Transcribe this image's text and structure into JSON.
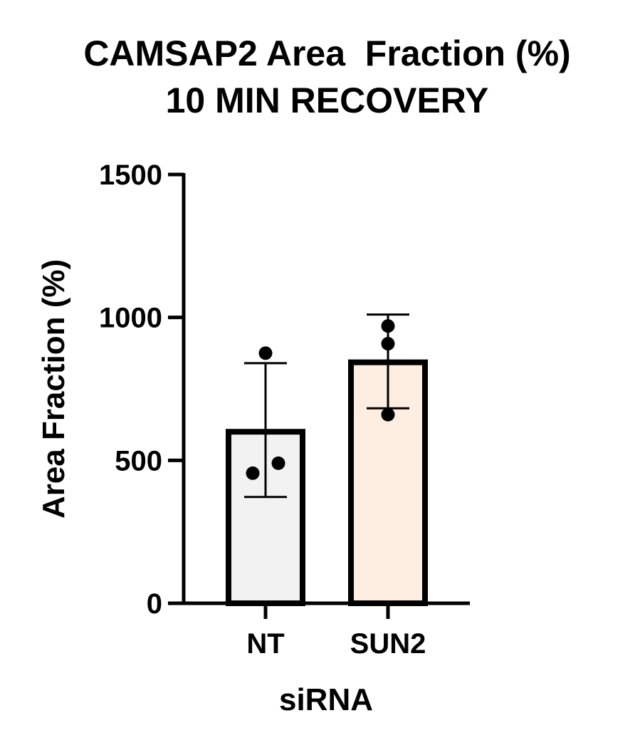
{
  "chart_data": {
    "type": "bar",
    "title": [
      "CAMSAP2 Area  Fraction (%)",
      "10 MIN RECOVERY"
    ],
    "xlabel": "siRNA",
    "ylabel": "Area Fraction  (%)",
    "ylim": [
      0,
      1500
    ],
    "yticks": [
      0,
      500,
      1000,
      1500
    ],
    "categories": [
      "NT",
      "SUN2"
    ],
    "values": [
      600,
      843
    ],
    "error": [
      {
        "low": 372,
        "high": 840
      },
      {
        "low": 682,
        "high": 1010
      }
    ],
    "points": [
      [
        875,
        455,
        490
      ],
      [
        970,
        908,
        660
      ]
    ],
    "colors": {
      "bars": [
        "#f2f2f2",
        "#fdeee1"
      ],
      "stroke": "#000000"
    },
    "grid": false,
    "legend": "none"
  }
}
